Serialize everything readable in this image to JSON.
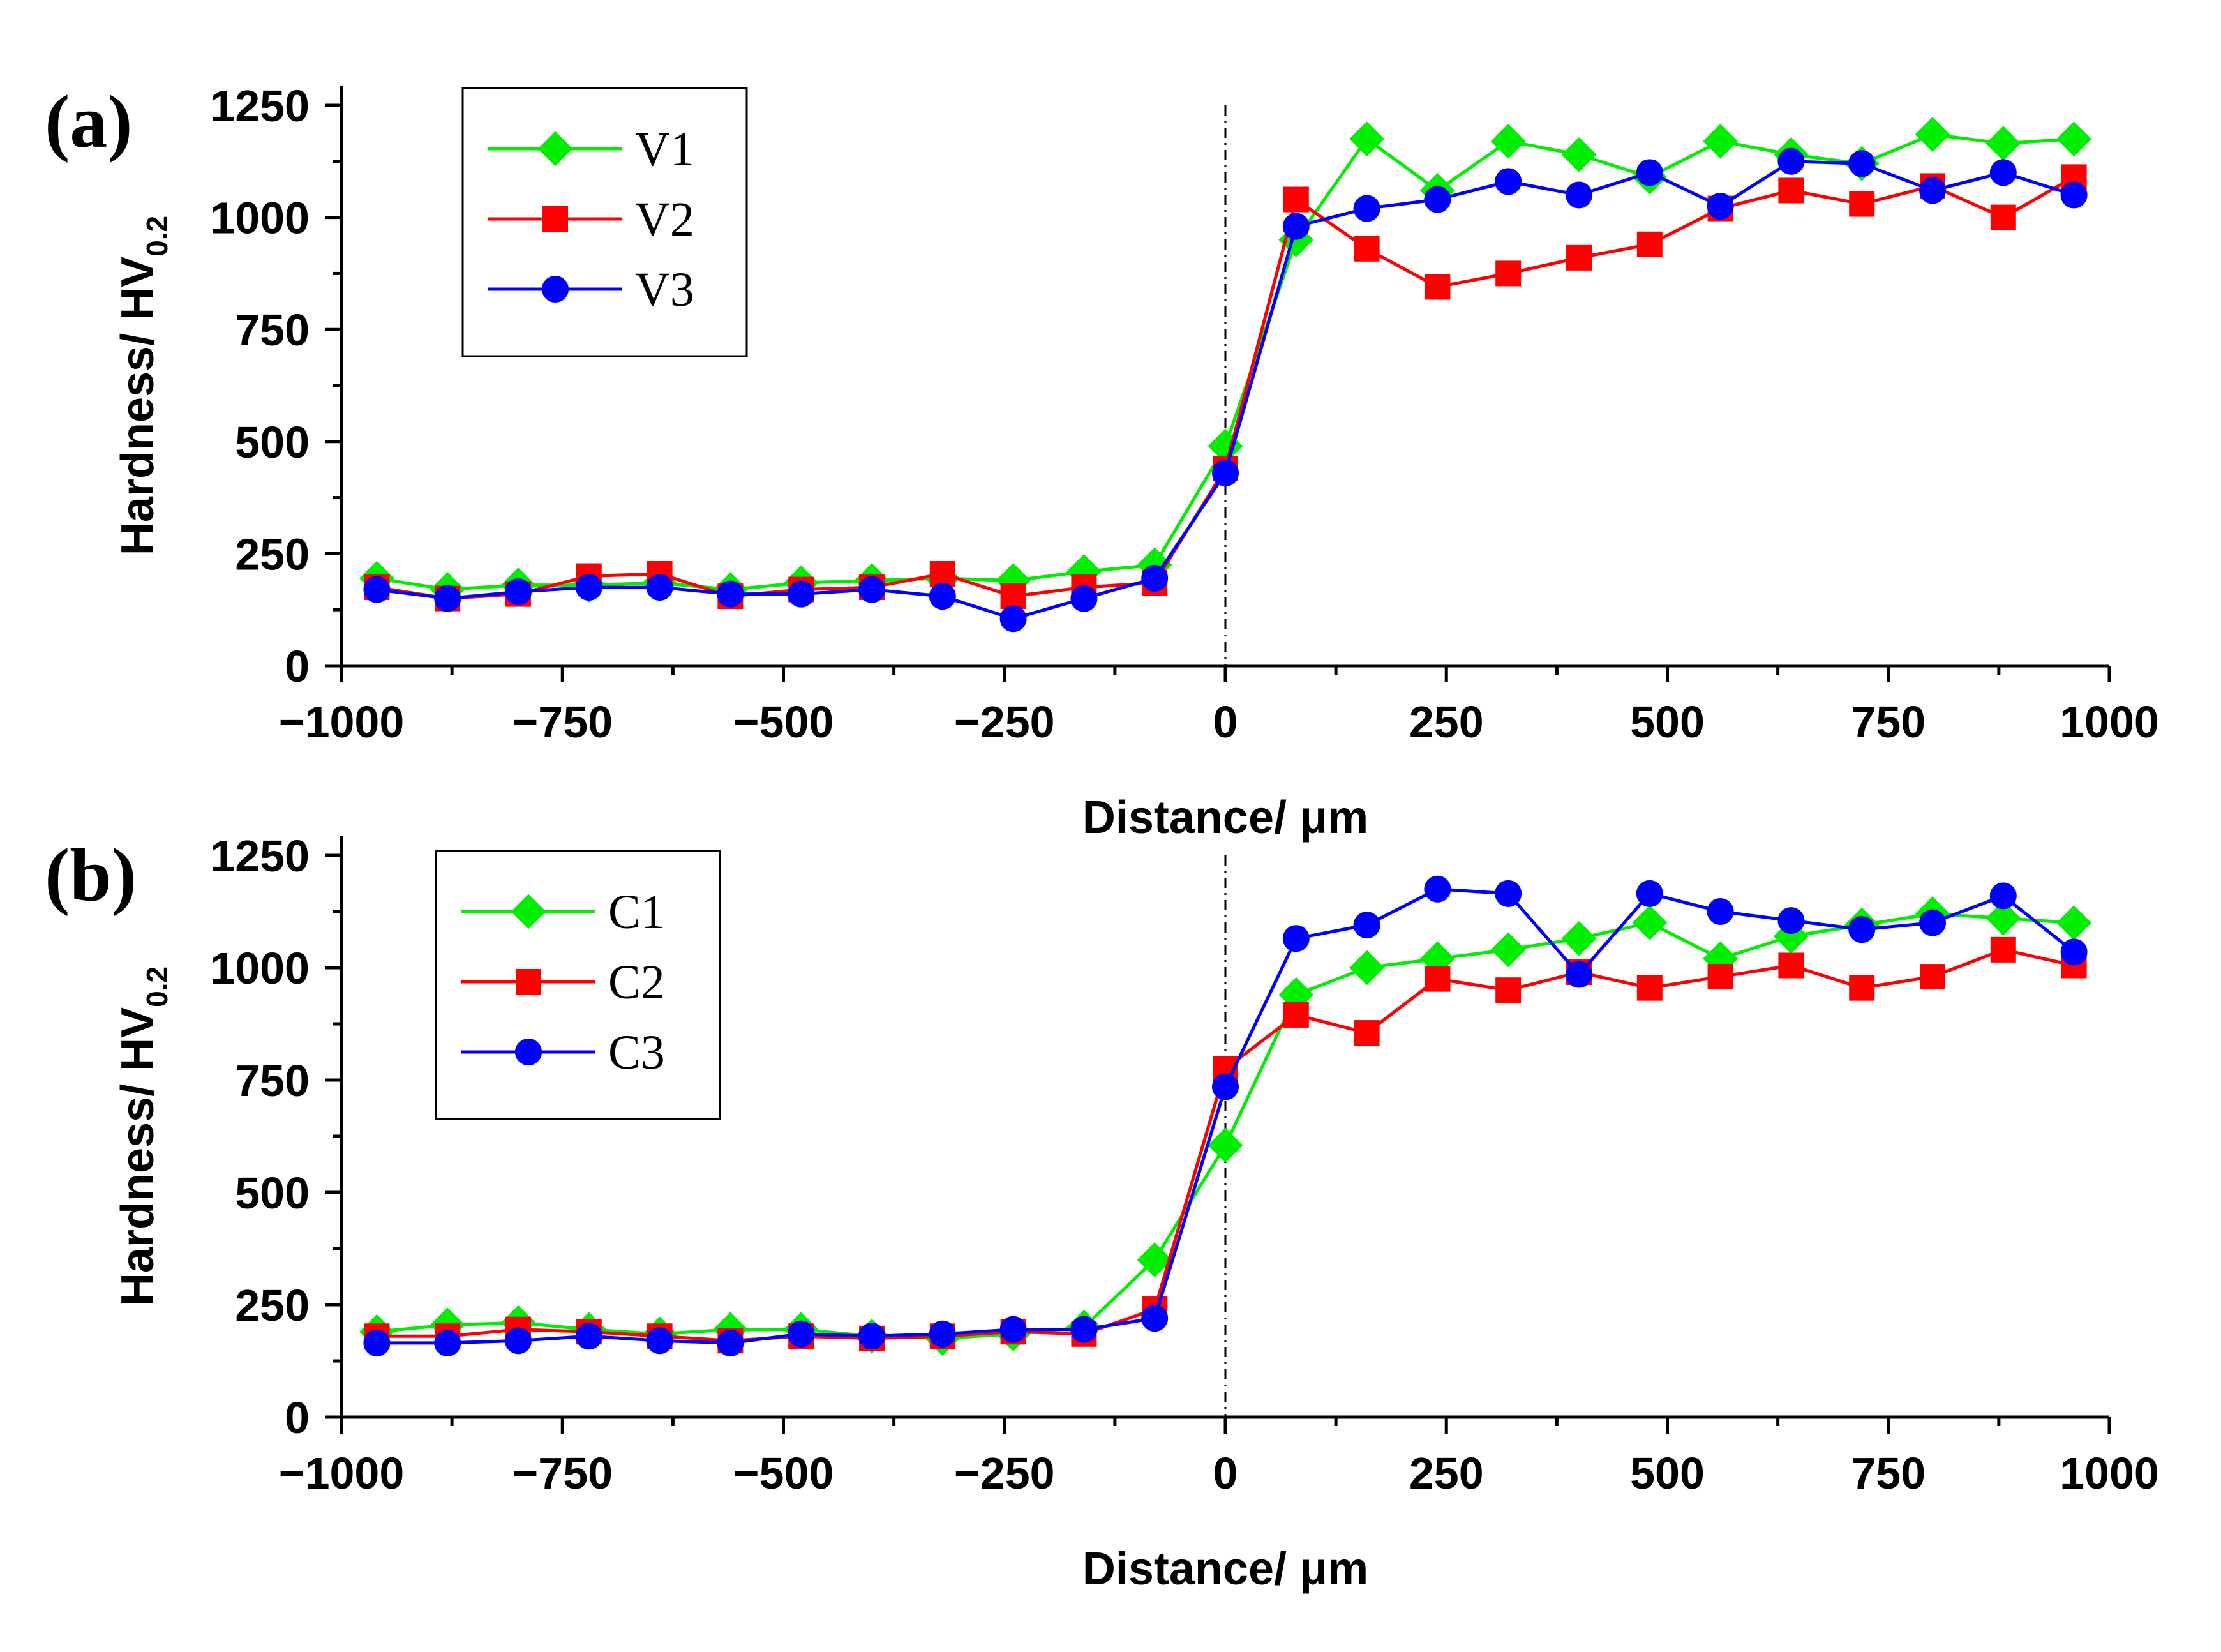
{
  "chart_data": [
    {
      "type": "line",
      "panel_label": "(a)",
      "xlabel": "Distance/ μm",
      "ylabel_main": "Hardness/ HV",
      "ylabel_sub": "0.2",
      "xlim": [
        -1000,
        1000
      ],
      "ylim": [
        0,
        1250
      ],
      "xticks": [
        -1000,
        -750,
        -500,
        -250,
        0,
        250,
        500,
        750,
        1000
      ],
      "xtick_labels": [
        "−1000",
        "−750",
        "−500",
        "−250",
        "0",
        "250",
        "500",
        "750",
        "1000"
      ],
      "yticks": [
        0,
        250,
        500,
        750,
        1000,
        1250
      ],
      "ytick_labels": [
        "0",
        "250",
        "500",
        "750",
        "1000",
        "1250"
      ],
      "grid": false,
      "legend_position": "top-left",
      "reference_line_x": 0,
      "x": [
        -960,
        -880,
        -800,
        -720,
        -640,
        -560,
        -480,
        -400,
        -320,
        -240,
        -160,
        -80,
        0,
        80,
        160,
        240,
        320,
        400,
        480,
        560,
        640,
        720,
        800,
        880,
        960
      ],
      "series": [
        {
          "name": "V1",
          "color": "#00ee00",
          "marker": "diamond",
          "values": [
            195,
            170,
            180,
            180,
            185,
            170,
            185,
            190,
            195,
            190,
            210,
            225,
            490,
            950,
            1175,
            1060,
            1170,
            1140,
            1090,
            1170,
            1140,
            1120,
            1185,
            1165,
            1175
          ]
        },
        {
          "name": "V2",
          "color": "#ff0000",
          "marker": "square",
          "values": [
            175,
            150,
            160,
            200,
            205,
            155,
            170,
            175,
            205,
            155,
            175,
            185,
            440,
            1040,
            930,
            845,
            875,
            910,
            940,
            1020,
            1060,
            1030,
            1070,
            1000,
            1090
          ]
        },
        {
          "name": "V3",
          "color": "#0000ff",
          "marker": "circle",
          "values": [
            170,
            150,
            165,
            175,
            175,
            160,
            160,
            170,
            155,
            105,
            150,
            195,
            430,
            980,
            1020,
            1040,
            1080,
            1050,
            1100,
            1025,
            1125,
            1120,
            1060,
            1100,
            1050
          ]
        }
      ]
    },
    {
      "type": "line",
      "panel_label": "(b)",
      "xlabel": "Distance/ μm",
      "ylabel_main": "Hardness/ HV",
      "ylabel_sub": "0.2",
      "xlim": [
        -1000,
        1000
      ],
      "ylim": [
        0,
        1250
      ],
      "xticks": [
        -1000,
        -750,
        -500,
        -250,
        0,
        250,
        500,
        750,
        1000
      ],
      "xtick_labels": [
        "−1000",
        "−750",
        "−500",
        "−250",
        "0",
        "250",
        "500",
        "750",
        "1000"
      ],
      "yticks": [
        0,
        250,
        500,
        750,
        1000,
        1250
      ],
      "ytick_labels": [
        "0",
        "250",
        "500",
        "750",
        "1000",
        "1250"
      ],
      "grid": false,
      "legend_position": "top-left",
      "reference_line_x": 0,
      "x": [
        -960,
        -880,
        -800,
        -720,
        -640,
        -560,
        -480,
        -400,
        -320,
        -240,
        -160,
        -80,
        0,
        80,
        160,
        240,
        320,
        400,
        480,
        560,
        640,
        720,
        800,
        880,
        960
      ],
      "series": [
        {
          "name": "C1",
          "color": "#00ee00",
          "marker": "diamond",
          "values": [
            190,
            205,
            210,
            195,
            185,
            195,
            195,
            180,
            175,
            185,
            200,
            350,
            605,
            940,
            1000,
            1020,
            1040,
            1065,
            1100,
            1020,
            1070,
            1095,
            1120,
            1110,
            1100
          ]
        },
        {
          "name": "C2",
          "color": "#ff0000",
          "marker": "square",
          "values": [
            180,
            180,
            195,
            190,
            180,
            170,
            180,
            175,
            180,
            190,
            185,
            240,
            775,
            895,
            855,
            975,
            950,
            990,
            955,
            980,
            1005,
            955,
            980,
            1040,
            1005
          ]
        },
        {
          "name": "C3",
          "color": "#0000ff",
          "marker": "circle",
          "values": [
            165,
            165,
            170,
            180,
            170,
            165,
            185,
            180,
            185,
            195,
            195,
            220,
            735,
            1065,
            1095,
            1175,
            1165,
            985,
            1165,
            1125,
            1105,
            1085,
            1100,
            1160,
            1035
          ]
        }
      ]
    }
  ]
}
